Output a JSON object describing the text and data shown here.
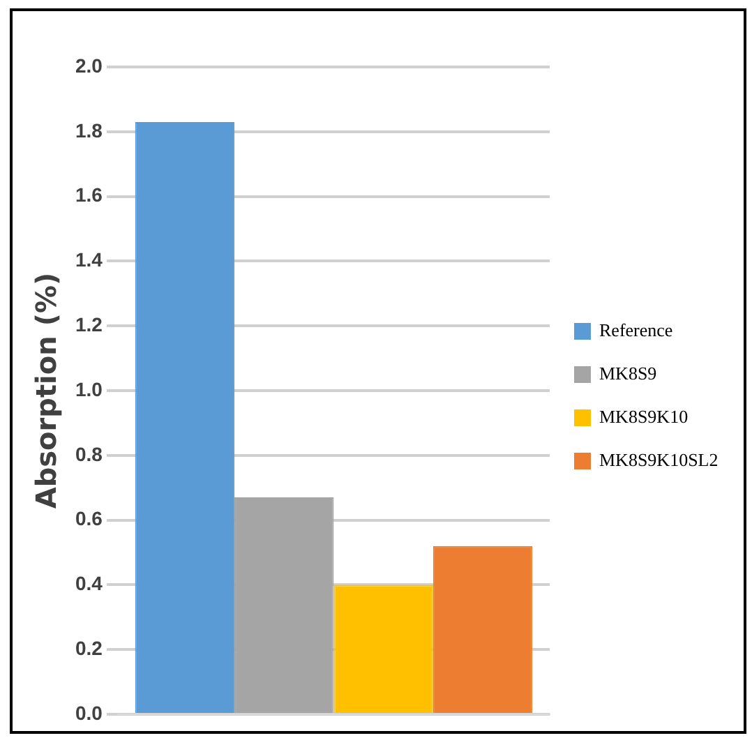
{
  "chart_data": {
    "type": "bar",
    "ylabel": "Absorption (%)",
    "categories": [
      null
    ],
    "series": [
      {
        "name": "Reference",
        "color": "#5b9bd5",
        "values": [
          1.83
        ]
      },
      {
        "name": "MK8S9",
        "color": "#a5a5a5",
        "values": [
          0.67
        ]
      },
      {
        "name": "MK8S9K10",
        "color": "#ffc000",
        "values": [
          0.4
        ]
      },
      {
        "name": "MK8S9K10SL2",
        "color": "#ed7d31",
        "values": [
          0.52
        ]
      }
    ],
    "ylim": [
      0,
      2
    ],
    "yticks": [
      {
        "value": 0,
        "label": "0.0"
      },
      {
        "value": 0.2,
        "label": "0.2"
      },
      {
        "value": 0.4,
        "label": "0.4"
      },
      {
        "value": 0.6,
        "label": "0.6"
      },
      {
        "value": 0.8,
        "label": "0.8"
      },
      {
        "value": 1,
        "label": "1.0"
      },
      {
        "value": 1.2,
        "label": "1.2"
      },
      {
        "value": 1.4,
        "label": "1.4"
      },
      {
        "value": 1.6,
        "label": "1.6"
      },
      {
        "value": 1.8,
        "label": "1.8"
      },
      {
        "value": 2,
        "label": "2.0"
      }
    ],
    "grid": "y",
    "legend": "right"
  }
}
